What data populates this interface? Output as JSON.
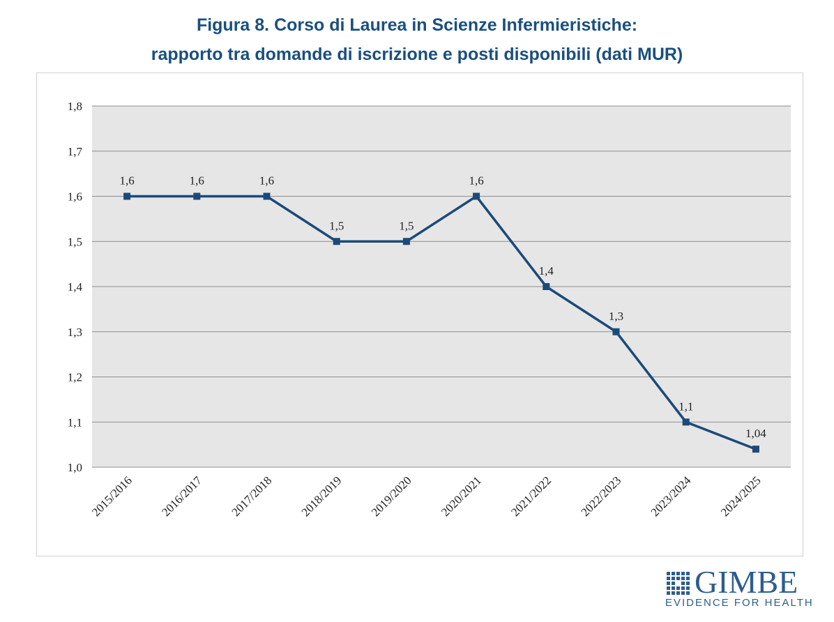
{
  "title": {
    "line1": "Figura 8. Corso di Laurea in Scienze Infermieristiche:",
    "line2": "rapporto tra domande di iscrizione e posti disponibili (dati MUR)"
  },
  "colors": {
    "title": "#1b4f7e",
    "series": "#1b4a7a",
    "plot_background": "#e6e6e6",
    "gridline": "#8c8c8c",
    "logo": "#2c5d8d"
  },
  "chart_data": {
    "type": "line",
    "title": "",
    "xlabel": "",
    "ylabel": "",
    "categories": [
      "2015/2016",
      "2016/2017",
      "2017/2018",
      "2018/2019",
      "2019/2020",
      "2020/2021",
      "2021/2022",
      "2022/2023",
      "2023/2024",
      "2024/2025"
    ],
    "series": [
      {
        "values": [
          1.6,
          1.6,
          1.6,
          1.5,
          1.5,
          1.6,
          1.4,
          1.3,
          1.1,
          1.04
        ],
        "labels": [
          "1,6",
          "1,6",
          "1,6",
          "1,5",
          "1,5",
          "1,6",
          "1,4",
          "1,3",
          "1,1",
          "1,04"
        ]
      }
    ],
    "ylim": [
      1.0,
      1.8
    ],
    "yticks": [
      1.0,
      1.1,
      1.2,
      1.3,
      1.4,
      1.5,
      1.6,
      1.7,
      1.8
    ],
    "ytick_labels": [
      "1,0",
      "1,1",
      "1,2",
      "1,3",
      "1,4",
      "1,5",
      "1,6",
      "1,7",
      "1,8"
    ],
    "grid": true,
    "marker": "square",
    "legend": "none"
  },
  "logo": {
    "name": "GIMBE",
    "tagline": "EVIDENCE FOR HEALTH"
  }
}
